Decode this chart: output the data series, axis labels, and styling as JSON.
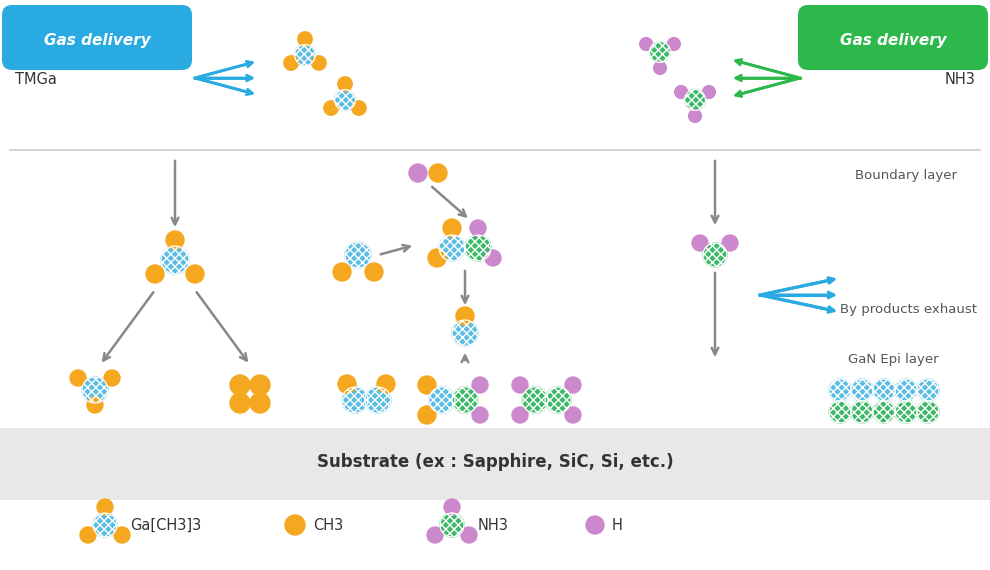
{
  "bg_color": "#ffffff",
  "substrate_label": "Substrate (ex : Sapphire, SiC, Si, etc.)",
  "boundary_label": "Boundary layer",
  "byproducts_label": "By products exhaust",
  "gan_label": "GaN Epi layer",
  "left_badge_text": "Gas delivery",
  "right_badge_text": "Gas delivery",
  "left_badge_color": "#29abe2",
  "right_badge_color": "#2db84b",
  "tmga_label": "TMGa",
  "nh3_label": "NH3",
  "arrow_color_blue": "#29abe2",
  "arrow_color_green": "#2db84b",
  "arrow_color_gray": "#888888",
  "ga_color": "#5bbde4",
  "ch3_color": "#f5a81f",
  "nh3_n_color": "#3cb868",
  "h_color": "#cc88cc",
  "legend_ga_label": "Ga[CH3]3",
  "legend_ch3_label": "CH3",
  "legend_nh3_label": "NH3",
  "legend_h_label": "H"
}
